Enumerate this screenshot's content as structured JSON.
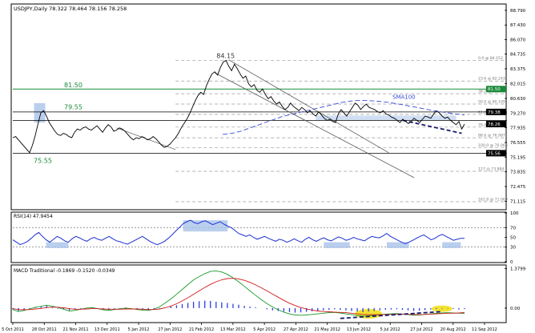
{
  "chart_data": {
    "type": "line",
    "title": "USDJPY,Daily  78.322 78.464 78.156 78.258",
    "x_labels": [
      "5 Oct 2011",
      "28 Oct 2011",
      "21 Nov 2011",
      "13 Dec 2011",
      "5 Jan 2012",
      "27 Jan 2012",
      "21 Feb 2012",
      "13 Mar 2012",
      "5 Apr 2012",
      "27 Apr 2012",
      "21 May 2012",
      "13 Jun 2012",
      "5 Jul 2012",
      "27 Jul 2012",
      "20 Aug 2012",
      "11 Sep 2012"
    ],
    "price": {
      "ylim": [
        70.4,
        89.3
      ],
      "ticks": [
        88.79,
        87.43,
        86.07,
        84.735,
        83.375,
        82.015,
        80.63,
        79.27,
        77.935,
        76.555,
        75.195,
        73.835,
        72.475,
        71.115
      ],
      "tick_labels": [
        "88.790",
        "87.430",
        "86.070",
        "84.735",
        "83.375",
        "82.015",
        "80.630",
        "79.270",
        "77.935",
        "76.555",
        "75.195",
        "73.835",
        "72.475",
        "71.115"
      ],
      "series": [
        {
          "name": "price",
          "values": [
            77.0,
            77.1,
            76.8,
            76.5,
            76.2,
            75.9,
            75.6,
            76.3,
            77.2,
            78.3,
            79.3,
            79.5,
            79.0,
            78.4,
            78.0,
            77.6,
            77.3,
            77.2,
            77.4,
            77.3,
            77.1,
            77.0,
            77.5,
            77.8,
            77.7,
            77.9,
            78.0,
            77.8,
            77.7,
            77.9,
            78.1,
            77.8,
            77.5,
            77.9,
            78.2,
            78.0,
            77.6,
            77.7,
            77.9,
            77.8,
            77.6,
            77.3,
            77.0,
            76.8,
            77.0,
            76.9,
            77.1,
            77.0,
            76.8,
            76.9,
            77.1,
            76.9,
            76.6,
            76.3,
            76.1,
            76.2,
            76.4,
            76.7,
            77.0,
            77.4,
            77.9,
            78.3,
            78.7,
            79.2,
            79.8,
            80.4,
            80.9,
            81.2,
            81.0,
            81.8,
            82.4,
            82.9,
            83.1,
            82.8,
            83.5,
            84.0,
            84.15,
            83.6,
            83.2,
            83.8,
            83.4,
            82.9,
            82.5,
            82.7,
            82.0,
            81.7,
            81.9,
            81.4,
            81.2,
            81.5,
            81.0,
            80.6,
            80.8,
            80.4,
            80.1,
            80.3,
            79.9,
            79.6,
            79.8,
            80.2,
            79.9,
            79.7,
            79.5,
            79.8,
            79.6,
            79.3,
            79.5,
            79.2,
            79.0,
            79.4,
            79.1,
            78.8,
            78.6,
            78.7,
            78.5,
            78.4,
            79.2,
            79.6,
            79.3,
            79.0,
            79.4,
            79.8,
            80.2,
            80.0,
            79.6,
            79.9,
            80.1,
            79.8,
            79.7,
            79.6,
            79.4,
            79.3,
            79.5,
            79.2,
            79.1,
            78.9,
            78.8,
            78.6,
            78.4,
            78.7,
            78.5,
            78.3,
            78.5,
            78.8,
            78.6,
            78.4,
            78.7,
            79.0,
            78.9,
            78.8,
            79.2,
            79.5,
            79.3,
            79.0,
            78.8,
            78.9,
            78.6,
            78.4,
            78.2,
            78.5,
            77.8,
            78.258
          ]
        },
        {
          "name": "SMA100",
          "values": [
            null,
            null,
            null,
            null,
            null,
            null,
            null,
            null,
            null,
            null,
            null,
            null,
            null,
            null,
            null,
            null,
            null,
            null,
            null,
            null,
            null,
            null,
            null,
            null,
            null,
            null,
            null,
            null,
            null,
            null,
            null,
            null,
            null,
            null,
            null,
            null,
            null,
            null,
            null,
            null,
            null,
            null,
            null,
            null,
            null,
            null,
            77.3,
            77.35,
            77.4,
            77.5,
            77.6,
            77.75,
            77.9,
            78.05,
            78.2,
            78.35,
            78.5,
            78.65,
            78.8,
            78.95,
            79.05,
            79.15,
            79.25,
            79.35,
            79.45,
            79.55,
            79.65,
            79.75,
            79.85,
            79.95,
            80.05,
            80.15,
            80.25,
            80.32,
            80.38,
            80.42,
            80.45,
            80.45,
            80.43,
            80.4,
            80.37,
            80.33,
            80.28,
            80.22,
            80.15,
            80.08,
            80.0,
            79.92,
            79.84,
            79.76,
            79.68,
            79.6,
            79.52,
            79.45,
            79.38,
            79.32,
            79.26,
            79.2,
            79.15,
            79.1
          ]
        }
      ],
      "levels": [
        {
          "label": "81.50",
          "value": 81.5
        },
        {
          "label": "79.55",
          "value": 79.55
        },
        {
          "label": "75.55",
          "value": 75.55
        },
        {
          "label": "84.15",
          "value": 84.15
        }
      ],
      "fib_labels": [
        {
          "label": "0.0 @ 84.152",
          "value": 84.152
        },
        {
          "label": "23.6 @ 82.243",
          "value": 82.243
        },
        {
          "label": "38.2 @ 81.063",
          "value": 81.063
        },
        {
          "label": "50.0 @ 80.109",
          "value": 80.109
        },
        {
          "label": "61.8 @ 79.155",
          "value": 79.155
        },
        {
          "label": "76.4 @ 77.974",
          "value": 77.974
        },
        {
          "label": "88.6 @ 76.987",
          "value": 76.987
        },
        {
          "label": "100.0 @ 76.066",
          "value": 76.066
        },
        {
          "label": "127 @ 73.884",
          "value": 73.884
        },
        {
          "label": "161.8 @ 71.069",
          "value": 71.069
        }
      ],
      "annotations": [
        "SMA100"
      ],
      "right_markers": [
        {
          "label": "81.50",
          "value": 81.5,
          "color": "#1a8a3a"
        },
        {
          "label": "79.38",
          "value": 79.38,
          "color": "#000000"
        },
        {
          "label": "78.26",
          "value": 78.26,
          "color": "#000000"
        },
        {
          "label": "75.56",
          "value": 75.56,
          "color": "#000000"
        }
      ]
    },
    "rsi": {
      "title": "RSI(14) 47.9454",
      "ylim": [
        0,
        100
      ],
      "ticks": [
        100,
        70,
        50,
        30,
        0
      ],
      "tick_labels": [
        "100",
        "70",
        "50",
        "30",
        "0"
      ],
      "values": [
        45,
        40,
        35,
        38,
        42,
        48,
        55,
        60,
        52,
        45,
        40,
        46,
        52,
        48,
        43,
        40,
        47,
        52,
        49,
        45,
        42,
        47,
        50,
        46,
        44,
        48,
        52,
        47,
        43,
        41,
        38,
        36,
        40,
        44,
        48,
        52,
        47,
        42,
        38,
        35,
        38,
        42,
        48,
        55,
        63,
        70,
        78,
        82,
        85,
        80,
        78,
        82,
        84,
        80,
        76,
        79,
        82,
        77,
        73,
        70,
        64,
        58,
        55,
        52,
        55,
        50,
        46,
        49,
        52,
        48,
        45,
        42,
        46,
        44,
        40,
        43,
        47,
        43,
        40,
        46,
        50,
        45,
        42,
        46,
        49,
        45,
        43,
        47,
        51,
        48,
        44,
        46,
        50,
        47,
        45,
        43,
        48,
        52,
        50,
        49,
        53,
        58,
        52,
        48,
        44,
        40,
        37,
        40,
        44,
        48,
        52,
        55,
        50,
        45,
        48,
        53,
        56,
        52,
        48,
        44,
        46,
        48,
        47.9454
      ]
    },
    "macd": {
      "title": "MACD Traditional -0.1869 -0.1520 -0.0349",
      "ylim": [
        -0.45,
        1.45
      ],
      "ticks": [
        1.3799,
        0.0
      ],
      "tick_labels": [
        "1.3799",
        "0.00"
      ],
      "histogram": [
        -0.05,
        -0.1,
        -0.06,
        -0.03,
        0.02,
        0.05,
        0.08,
        0.04,
        -0.02,
        -0.04,
        -0.08,
        -0.05,
        -0.02,
        0.01,
        0.03,
        -0.02,
        -0.05,
        -0.07,
        -0.03,
        0.0,
        0.02,
        -0.01,
        -0.04,
        -0.06,
        -0.08,
        -0.05,
        -0.02,
        0.02,
        0.06,
        0.1,
        0.14,
        0.18,
        0.22,
        0.24,
        0.26,
        0.25,
        0.22,
        0.2,
        0.18,
        0.15,
        0.12,
        0.08,
        0.05,
        0.03,
        0.0,
        -0.04,
        -0.08,
        -0.1,
        -0.12,
        -0.14,
        -0.16,
        -0.15,
        -0.13,
        -0.11,
        -0.1,
        -0.08,
        -0.06,
        -0.04,
        -0.06,
        -0.08,
        -0.1,
        -0.12,
        -0.14,
        -0.12,
        -0.1,
        -0.08,
        -0.06,
        -0.05,
        -0.04,
        -0.06,
        -0.08,
        -0.1,
        -0.09,
        -0.07,
        -0.05,
        -0.03,
        -0.02,
        -0.01,
        -0.03,
        -0.05,
        -0.0349
      ],
      "macd_line": [
        -0.05,
        -0.12,
        -0.08,
        -0.03,
        0.03,
        0.06,
        0.1,
        0.07,
        0.02,
        -0.04,
        -0.1,
        -0.08,
        -0.04,
        0.0,
        0.02,
        -0.02,
        -0.06,
        -0.08,
        -0.05,
        -0.02,
        0.0,
        -0.02,
        -0.05,
        -0.07,
        -0.08,
        -0.04,
        0.05,
        0.18,
        0.32,
        0.48,
        0.65,
        0.82,
        0.98,
        1.1,
        1.2,
        1.28,
        1.3,
        1.26,
        1.18,
        1.06,
        0.92,
        0.76,
        0.6,
        0.45,
        0.3,
        0.16,
        0.04,
        -0.06,
        -0.14,
        -0.2,
        -0.24,
        -0.25,
        -0.24,
        -0.22,
        -0.2,
        -0.18,
        -0.16,
        -0.15,
        -0.17,
        -0.2,
        -0.23,
        -0.26,
        -0.28,
        -0.27,
        -0.25,
        -0.23,
        -0.21,
        -0.2,
        -0.19,
        -0.21,
        -0.23,
        -0.25,
        -0.24,
        -0.22,
        -0.2,
        -0.18,
        -0.17,
        -0.16,
        -0.17,
        -0.18,
        -0.1869
      ],
      "signal_line": [
        -0.02,
        -0.05,
        -0.06,
        -0.05,
        -0.03,
        -0.01,
        0.02,
        0.03,
        0.03,
        0.01,
        -0.02,
        -0.04,
        -0.04,
        -0.03,
        -0.02,
        -0.02,
        -0.03,
        -0.04,
        -0.04,
        -0.04,
        -0.03,
        -0.03,
        -0.03,
        -0.04,
        -0.05,
        -0.05,
        -0.03,
        0.01,
        0.07,
        0.15,
        0.25,
        0.36,
        0.48,
        0.6,
        0.72,
        0.83,
        0.92,
        0.99,
        1.03,
        1.04,
        1.02,
        0.97,
        0.9,
        0.81,
        0.71,
        0.6,
        0.49,
        0.38,
        0.27,
        0.17,
        0.09,
        0.02,
        -0.03,
        -0.07,
        -0.1,
        -0.12,
        -0.13,
        -0.14,
        -0.15,
        -0.16,
        -0.18,
        -0.2,
        -0.22,
        -0.23,
        -0.23,
        -0.23,
        -0.22,
        -0.22,
        -0.21,
        -0.21,
        -0.22,
        -0.22,
        -0.23,
        -0.22,
        -0.21,
        -0.2,
        -0.19,
        -0.18,
        -0.18,
        -0.17,
        -0.152
      ]
    }
  },
  "colors": {
    "price_line": "#000000",
    "sma": "#3a4bd8",
    "level_green": "#1a8a3a",
    "fib": "#9a9a9a",
    "channel": "#555555",
    "highlight": "#a9c3ea",
    "rsi_line": "#1a2fd1",
    "macd_red": "#d11a1a",
    "macd_green": "#1a9a2a",
    "macd_hist": "#2a3fe0",
    "yellow": "#f2e01c"
  }
}
